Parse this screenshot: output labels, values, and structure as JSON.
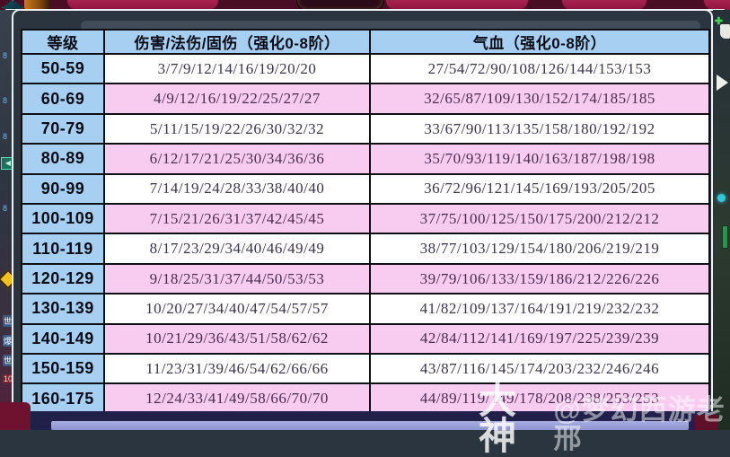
{
  "table": {
    "headers": [
      "等级",
      "伤害/法伤/固伤（强化0-8阶）",
      "气血（强化0-8阶）"
    ],
    "rows": [
      {
        "level": "50-59",
        "damage": "3/7/9/12/14/16/19/20/20",
        "hp": "27/54/72/90/108/126/144/153/153"
      },
      {
        "level": "60-69",
        "damage": "4/9/12/16/19/22/25/27/27",
        "hp": "32/65/87/109/130/152/174/185/185"
      },
      {
        "level": "70-79",
        "damage": "5/11/15/19/22/26/30/32/32",
        "hp": "33/67/90/113/135/158/180/192/192"
      },
      {
        "level": "80-89",
        "damage": "6/12/17/21/25/30/34/36/36",
        "hp": "35/70/93/119/140/163/187/198/198"
      },
      {
        "level": "90-99",
        "damage": "7/14/19/24/28/33/38/40/40",
        "hp": "36/72/96/121/145/169/193/205/205"
      },
      {
        "level": "100-109",
        "damage": "7/15/21/26/31/37/42/45/45",
        "hp": "37/75/100/125/150/175/200/212/212"
      },
      {
        "level": "110-119",
        "damage": "8/17/23/29/34/40/46/49/49",
        "hp": "38/77/103/129/154/180/206/219/219"
      },
      {
        "level": "120-129",
        "damage": "9/18/25/31/37/44/50/53/53",
        "hp": "39/79/106/133/159/186/212/226/226"
      },
      {
        "level": "130-139",
        "damage": "10/20/27/34/40/47/54/57/57",
        "hp": "41/82/109/137/164/191/219/232/232"
      },
      {
        "level": "140-149",
        "damage": "10/21/29/36/43/51/58/62/62",
        "hp": "42/84/112/141/169/197/225/239/239"
      },
      {
        "level": "150-159",
        "damage": "11/23/31/39/46/54/62/66/66",
        "hp": "43/87/116/145/174/203/232/246/246"
      },
      {
        "level": "160-175",
        "damage": "12/24/33/41/49/58/66/70/70",
        "hp": "44/89/119/149/178/208/238/253/253"
      }
    ]
  },
  "watermark": {
    "logo": "大神",
    "handle": "@梦幻西游老邢"
  },
  "scene": {
    "left_fragments": [
      "8",
      "8",
      "8",
      "8",
      "世",
      "爆",
      "世",
      "10"
    ]
  },
  "colors": {
    "header_blue": "#a6cff2",
    "row_pink": "#f8cbf0",
    "row_white": "#ffffff",
    "table_border": "#101014",
    "frame_fill": "#2b3540",
    "top_bar_maroon": "#9e1b44",
    "bottom_periwinkle": "#9097d2"
  }
}
